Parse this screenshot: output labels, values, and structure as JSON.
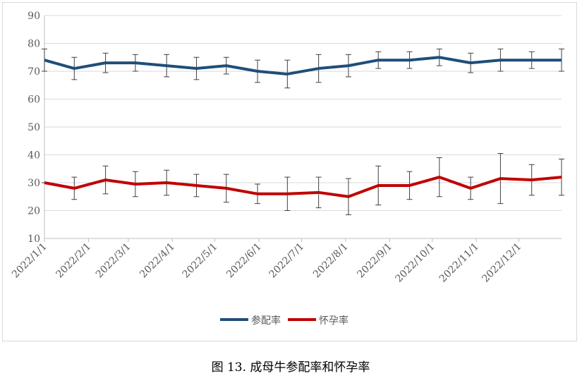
{
  "chart_data": {
    "type": "line",
    "caption": "图 13. 成母牛参配率和怀孕率",
    "x": [
      0,
      21,
      43,
      64,
      86,
      107,
      128,
      150,
      171,
      193,
      214,
      235,
      257,
      278,
      300,
      321,
      343,
      364
    ],
    "xlim": [
      0,
      364
    ],
    "xticks": [
      {
        "value": 0,
        "label": "2022/1/1"
      },
      {
        "value": 31,
        "label": "2022/2/1"
      },
      {
        "value": 59,
        "label": "2022/3/1"
      },
      {
        "value": 90,
        "label": "2022/4/1"
      },
      {
        "value": 120,
        "label": "2022/5/1"
      },
      {
        "value": 151,
        "label": "2022/6/1"
      },
      {
        "value": 181,
        "label": "2022/7/1"
      },
      {
        "value": 212,
        "label": "2022/8/1"
      },
      {
        "value": 243,
        "label": "2022/9/1"
      },
      {
        "value": 273,
        "label": "2022/10/1"
      },
      {
        "value": 304,
        "label": "2022/11/1"
      },
      {
        "value": 334,
        "label": "2022/12/1"
      }
    ],
    "ylim": [
      10,
      90
    ],
    "yticks": [
      10,
      20,
      30,
      40,
      50,
      60,
      70,
      80,
      90
    ],
    "grid": true,
    "legend": "bottom",
    "series": [
      {
        "name": "参配率",
        "color": "#1f4e79",
        "values": [
          74,
          71,
          73,
          73,
          72,
          71,
          72,
          70,
          69,
          71,
          72,
          74,
          74,
          75,
          73,
          74,
          74,
          74
        ],
        "errors": [
          4,
          4,
          3.5,
          3,
          4,
          4,
          3,
          4,
          5,
          5,
          4,
          3,
          3,
          3,
          3.5,
          4,
          3,
          4
        ]
      },
      {
        "name": "怀孕率",
        "color": "#c00000",
        "values": [
          30,
          28,
          31,
          29.5,
          30,
          29,
          28,
          26,
          26,
          26.5,
          25,
          29,
          29,
          32,
          28,
          31.5,
          31,
          32
        ],
        "errors": [
          0,
          4,
          5,
          4.5,
          4.5,
          4,
          5,
          3.5,
          6,
          5.5,
          6.5,
          7,
          5,
          7,
          4,
          9,
          5.5,
          6.5
        ]
      }
    ]
  }
}
